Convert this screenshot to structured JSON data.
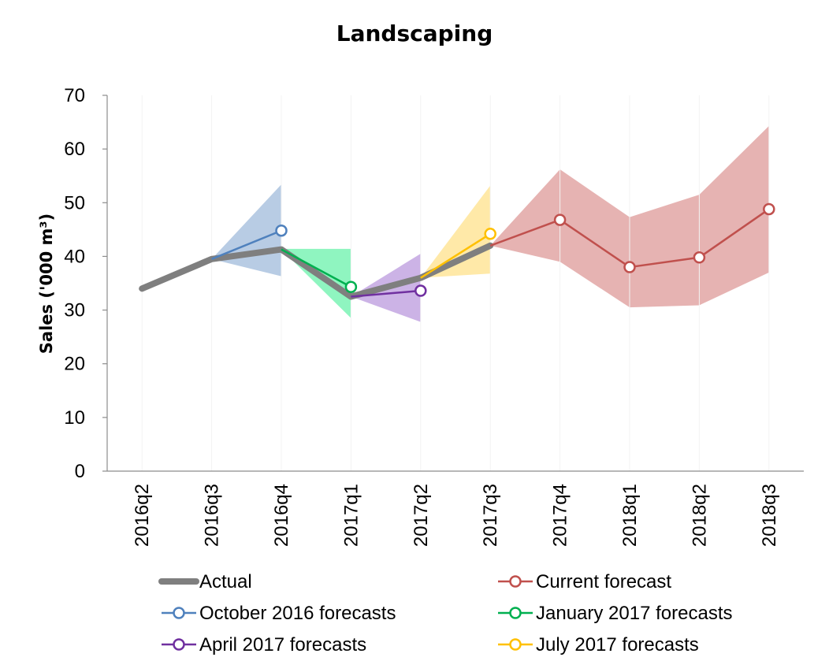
{
  "chart_data": {
    "type": "line",
    "title": "Landscaping",
    "ylabel": "Sales ('000 m³)",
    "xlabel": "",
    "ylim": [
      0,
      70
    ],
    "yticks": [
      0,
      10,
      20,
      30,
      40,
      50,
      60,
      70
    ],
    "categories": [
      "2016q2",
      "2016q3",
      "2016q4",
      "2017q1",
      "2017q2",
      "2017q3",
      "2017q4",
      "2018q1",
      "2018q2",
      "2018q3"
    ],
    "grid": false,
    "legend_position": "bottom",
    "series": [
      {
        "name": "Actual",
        "kind": "actual",
        "color": "#7f7f7f",
        "points": [
          {
            "x": "2016q2",
            "y": 34
          },
          {
            "x": "2016q3",
            "y": 39.5
          },
          {
            "x": "2016q4",
            "y": 41.3
          },
          {
            "x": "2017q1",
            "y": 32.5
          },
          {
            "x": "2017q2",
            "y": 36
          },
          {
            "x": "2017q3",
            "y": 42
          }
        ]
      },
      {
        "name": "Current forecast",
        "kind": "forecast",
        "color": "#c0504d",
        "band_color": "#e6b3b2",
        "points": [
          {
            "x": "2017q3",
            "y": 42
          },
          {
            "x": "2017q4",
            "y": 46.8
          },
          {
            "x": "2018q1",
            "y": 38
          },
          {
            "x": "2018q2",
            "y": 39.8
          },
          {
            "x": "2018q3",
            "y": 48.8
          }
        ],
        "band": [
          {
            "x": "2017q3",
            "lo": 42,
            "hi": 42
          },
          {
            "x": "2017q4",
            "lo": 39,
            "hi": 56.2
          },
          {
            "x": "2018q1",
            "lo": 30.5,
            "hi": 47.3
          },
          {
            "x": "2018q2",
            "lo": 30.9,
            "hi": 51.5
          },
          {
            "x": "2018q3",
            "lo": 37,
            "hi": 64.3
          }
        ]
      },
      {
        "name": "October 2016 forecasts",
        "kind": "forecast",
        "color": "#4f81bd",
        "band_color": "#b8cce4",
        "points": [
          {
            "x": "2016q3",
            "y": 39.5
          },
          {
            "x": "2016q4",
            "y": 44.8
          }
        ],
        "band": [
          {
            "x": "2016q3",
            "lo": 39.5,
            "hi": 39.5
          },
          {
            "x": "2016q4",
            "lo": 36.3,
            "hi": 53.4
          }
        ]
      },
      {
        "name": "January 2017 forecasts",
        "kind": "forecast",
        "color": "#00b050",
        "band_color": "#8ff5c0",
        "points": [
          {
            "x": "2016q4",
            "y": 41.3
          },
          {
            "x": "2017q1",
            "y": 34.3
          }
        ],
        "band": [
          {
            "x": "2016q4",
            "lo": 41.3,
            "hi": 41.4
          },
          {
            "x": "2017q1",
            "lo": 28.5,
            "hi": 41.4
          }
        ]
      },
      {
        "name": "April 2017 forecasts",
        "kind": "forecast",
        "color": "#7030a0",
        "band_color": "#ccb3e6",
        "points": [
          {
            "x": "2017q1",
            "y": 32.5
          },
          {
            "x": "2017q2",
            "y": 33.6
          }
        ],
        "band": [
          {
            "x": "2017q1",
            "lo": 32.5,
            "hi": 32.5
          },
          {
            "x": "2017q2",
            "lo": 27.8,
            "hi": 40.5
          }
        ]
      },
      {
        "name": "July 2017 forecasts",
        "kind": "forecast",
        "color": "#ffc000",
        "band_color": "#ffe9a8",
        "points": [
          {
            "x": "2017q2",
            "y": 36
          },
          {
            "x": "2017q3",
            "y": 44.2
          }
        ],
        "band": [
          {
            "x": "2017q2",
            "lo": 36,
            "hi": 36
          },
          {
            "x": "2017q3",
            "lo": 36.8,
            "hi": 53.2
          }
        ]
      }
    ],
    "legend": [
      {
        "series": 0
      },
      {
        "series": 1
      },
      {
        "series": 2
      },
      {
        "series": 3
      },
      {
        "series": 4
      },
      {
        "series": 5
      }
    ]
  }
}
